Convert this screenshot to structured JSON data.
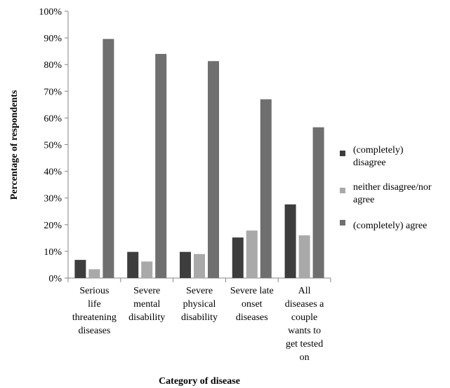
{
  "chart_data": {
    "type": "bar",
    "xlabel": "Category of disease",
    "ylabel": "Percentage of respondents",
    "ylim": [
      0,
      100
    ],
    "yticks": [
      "0%",
      "10%",
      "20%",
      "30%",
      "40%",
      "50%",
      "60%",
      "70%",
      "80%",
      "90%",
      "100%"
    ],
    "grid": false,
    "legend_position": "right",
    "categories": [
      [
        "Serious",
        "life",
        "threatening",
        "diseases"
      ],
      [
        "Severe",
        "mental",
        "disability"
      ],
      [
        "Severe",
        "physical",
        "disability"
      ],
      [
        "Severe late",
        "onset",
        "diseases"
      ],
      [
        "All",
        "diseases a",
        "couple",
        "wants to",
        "get tested",
        "on"
      ]
    ],
    "series": [
      {
        "name": [
          "(completely)",
          "disagree"
        ],
        "color": "#3d3d3d",
        "values": [
          6.8,
          9.8,
          9.8,
          15.2,
          27.6
        ]
      },
      {
        "name": [
          "neither disagree/nor",
          "agree"
        ],
        "color": "#a9a9a9",
        "values": [
          3.3,
          6.2,
          9.0,
          17.8,
          16.0
        ]
      },
      {
        "name": [
          "(completely) agree"
        ],
        "color": "#6f6f6f",
        "values": [
          89.6,
          84.0,
          81.3,
          67.0,
          56.5
        ]
      }
    ]
  }
}
